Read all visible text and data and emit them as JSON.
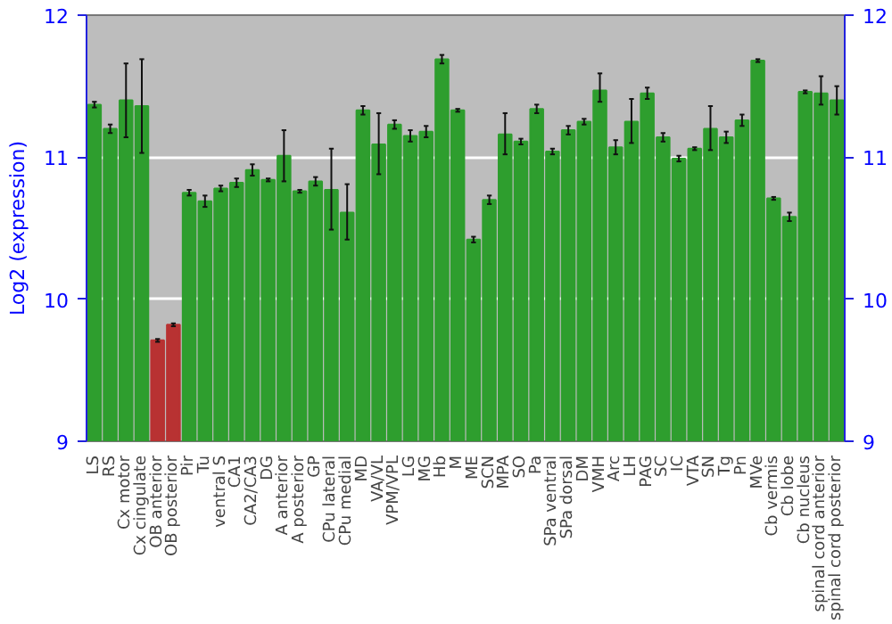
{
  "chart_data": {
    "type": "bar",
    "ylabel": "Log2 (expression)",
    "categories": [
      "LS",
      "RS",
      "Cx motor",
      "Cx cingulate",
      "OB anterior",
      "OB posterior",
      "Pir",
      "Tu",
      "ventral S",
      "CA1",
      "CA2/CA3",
      "DG",
      "A anterior",
      "A posterior",
      "GP",
      "CPu lateral",
      "CPu medial",
      "MD",
      "VA/VL",
      "VPM/VPL",
      "LG",
      "MG",
      "Hb",
      "M",
      "ME",
      "SCN",
      "MPA",
      "SO",
      "Pa",
      "SPa ventral",
      "SPa dorsal",
      "DM",
      "VMH",
      "Arc",
      "LH",
      "PAG",
      "SC",
      "IC",
      "VTA",
      "SN",
      "Tg",
      "Pn",
      "MVe",
      "Cb vermis",
      "Cb lobe",
      "Cb nucleus",
      "spinal cord anterior",
      "spinal cord posterior"
    ],
    "values": [
      11.37,
      11.2,
      11.4,
      11.36,
      9.71,
      9.82,
      10.75,
      10.69,
      10.78,
      10.82,
      10.91,
      10.84,
      11.01,
      10.76,
      10.83,
      10.77,
      10.61,
      11.33,
      11.09,
      11.23,
      11.15,
      11.18,
      11.69,
      11.33,
      10.42,
      10.7,
      11.16,
      11.11,
      11.34,
      11.04,
      11.19,
      11.25,
      11.47,
      11.07,
      11.25,
      11.45,
      11.14,
      10.99,
      11.06,
      11.2,
      11.14,
      11.26,
      11.68,
      10.71,
      10.58,
      11.46,
      11.45,
      11.4
    ],
    "errors": [
      0.02,
      0.03,
      [
        11.14,
        11.66
      ],
      [
        11.03,
        11.69
      ],
      0.01,
      0.01,
      0.02,
      0.04,
      0.02,
      0.03,
      0.04,
      0.01,
      [
        10.83,
        11.19
      ],
      0.01,
      0.03,
      [
        10.49,
        11.06
      ],
      [
        10.42,
        10.81
      ],
      0.03,
      [
        10.88,
        11.31
      ],
      0.03,
      0.04,
      0.04,
      0.03,
      0.01,
      0.02,
      0.03,
      [
        11.02,
        11.31
      ],
      0.02,
      0.03,
      0.02,
      0.03,
      0.02,
      [
        11.39,
        11.59
      ],
      0.05,
      [
        11.1,
        11.41
      ],
      0.04,
      0.03,
      0.02,
      0.01,
      [
        11.05,
        11.36
      ],
      0.04,
      0.04,
      0.01,
      0.01,
      0.03,
      0.01,
      [
        11.37,
        11.57
      ],
      [
        11.3,
        11.5
      ]
    ],
    "colors": [
      "#2e9e2e",
      "#2e9e2e",
      "#2e9e2e",
      "#2e9e2e",
      "#b83232",
      "#b83232",
      "#2e9e2e",
      "#2e9e2e",
      "#2e9e2e",
      "#2e9e2e",
      "#2e9e2e",
      "#2e9e2e",
      "#2e9e2e",
      "#2e9e2e",
      "#2e9e2e",
      "#2e9e2e",
      "#2e9e2e",
      "#2e9e2e",
      "#2e9e2e",
      "#2e9e2e",
      "#2e9e2e",
      "#2e9e2e",
      "#2e9e2e",
      "#2e9e2e",
      "#2e9e2e",
      "#2e9e2e",
      "#2e9e2e",
      "#2e9e2e",
      "#2e9e2e",
      "#2e9e2e",
      "#2e9e2e",
      "#2e9e2e",
      "#2e9e2e",
      "#2e9e2e",
      "#2e9e2e",
      "#2e9e2e",
      "#2e9e2e",
      "#2e9e2e",
      "#2e9e2e",
      "#2e9e2e",
      "#2e9e2e",
      "#2e9e2e",
      "#2e9e2e",
      "#2e9e2e",
      "#2e9e2e",
      "#2e9e2e",
      "#2e9e2e",
      "#2e9e2e"
    ],
    "ylim": [
      9,
      12
    ],
    "yticks": [
      9,
      10,
      11,
      12
    ],
    "y2lim": [
      9,
      12
    ],
    "y2ticks": [
      9,
      10,
      11,
      12
    ],
    "grid": "y"
  }
}
